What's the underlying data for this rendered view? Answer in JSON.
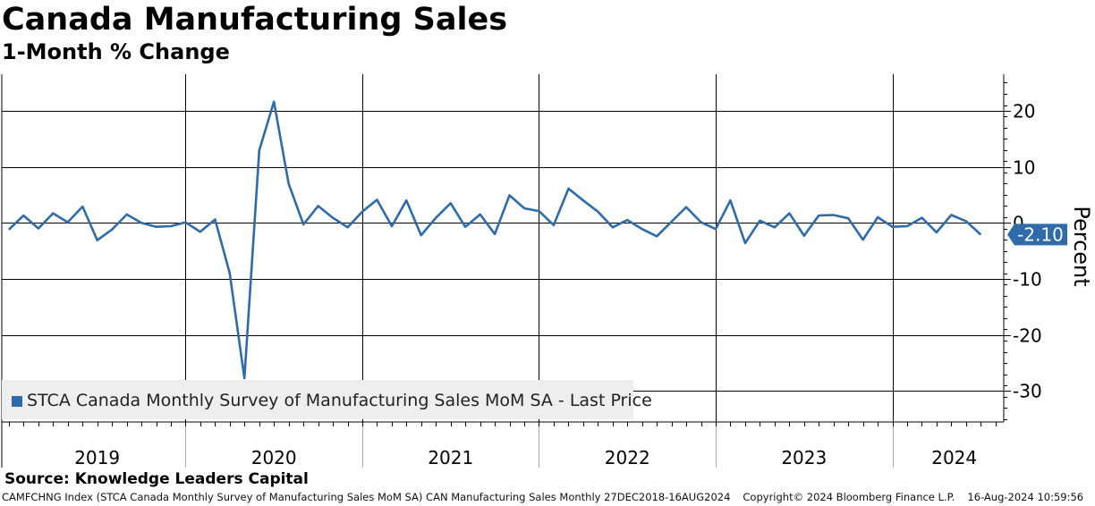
{
  "header": {
    "title": "Canada Manufacturing Sales",
    "subtitle": "1-Month % Change"
  },
  "colors": {
    "line": "#2e6ba8",
    "last_price_tag": "#2e6ba8",
    "grid": "#000000",
    "legend_bg": "#eeeeee"
  },
  "chart_data": {
    "type": "line",
    "title": "Canada Manufacturing Sales",
    "subtitle": "1-Month % Change",
    "ylabel": "Percent",
    "ylim": [
      -35.5,
      26.5
    ],
    "yticks": [
      20,
      10,
      0,
      -10,
      -20,
      -30
    ],
    "ytick_labels": [
      "20",
      "10",
      "0",
      "-10",
      "-20",
      "-30"
    ],
    "xlim": [
      2018.96,
      2024.63
    ],
    "year_labels": [
      "2019",
      "2020",
      "2021",
      "2022",
      "2023",
      "2024"
    ],
    "year_label_positions": [
      2019.5,
      2020.5,
      2021.5,
      2022.5,
      2023.5,
      2024.35
    ],
    "grid": true,
    "legend_position": "bottom-left",
    "last_value": -2.1,
    "last_value_label": "-2.10",
    "series": [
      {
        "name": "STCA Canada Monthly Survey of Manufacturing Sales MoM SA - Last Price",
        "x": [
          2019.0,
          2019.083,
          2019.167,
          2019.25,
          2019.333,
          2019.417,
          2019.5,
          2019.583,
          2019.667,
          2019.75,
          2019.833,
          2019.917,
          2020.0,
          2020.083,
          2020.167,
          2020.25,
          2020.333,
          2020.417,
          2020.5,
          2020.583,
          2020.667,
          2020.75,
          2020.833,
          2020.917,
          2021.0,
          2021.083,
          2021.167,
          2021.25,
          2021.333,
          2021.417,
          2021.5,
          2021.583,
          2021.667,
          2021.75,
          2021.833,
          2021.917,
          2022.0,
          2022.083,
          2022.167,
          2022.25,
          2022.333,
          2022.417,
          2022.5,
          2022.583,
          2022.667,
          2022.75,
          2022.833,
          2022.917,
          2023.0,
          2023.083,
          2023.167,
          2023.25,
          2023.333,
          2023.417,
          2023.5,
          2023.583,
          2023.667,
          2023.75,
          2023.833,
          2023.917,
          2024.0,
          2024.083,
          2024.167,
          2024.25,
          2024.333,
          2024.417,
          2024.5
        ],
        "values": [
          -1.2,
          1.3,
          -1.0,
          1.7,
          0.1,
          2.9,
          -3.1,
          -1.2,
          1.5,
          0.0,
          -0.7,
          -0.6,
          0.1,
          -1.6,
          0.6,
          -9.0,
          -27.7,
          12.9,
          21.6,
          7.0,
          -0.3,
          3.0,
          0.9,
          -0.8,
          2.0,
          4.1,
          -0.6,
          4.0,
          -2.2,
          0.9,
          3.5,
          -0.7,
          1.5,
          -2.0,
          4.9,
          2.6,
          2.1,
          -0.4,
          6.1,
          4.0,
          2.0,
          -0.8,
          0.5,
          -1.1,
          -2.4,
          0.2,
          2.8,
          0.1,
          -1.1,
          4.0,
          -3.6,
          0.4,
          -0.8,
          1.7,
          -2.3,
          1.3,
          1.4,
          0.8,
          -3.0,
          1.0,
          -0.7,
          -0.6,
          0.9,
          -1.7,
          1.4,
          0.3,
          -2.1
        ]
      }
    ]
  },
  "legend": {
    "label": "STCA Canada Monthly Survey of Manufacturing Sales MoM SA - Last Price"
  },
  "source": "Source: Knowledge Leaders Capital",
  "footer": {
    "index": "CAMFCHNG Index (STCA Canada Monthly Survey of Manufacturing Sales MoM SA) CAN Manufacturing Sales  Monthly 27DEC2018-16AUG2024",
    "copyright": "Copyright© 2024 Bloomberg Finance L.P.",
    "timestamp": "16-Aug-2024 10:59:56"
  }
}
